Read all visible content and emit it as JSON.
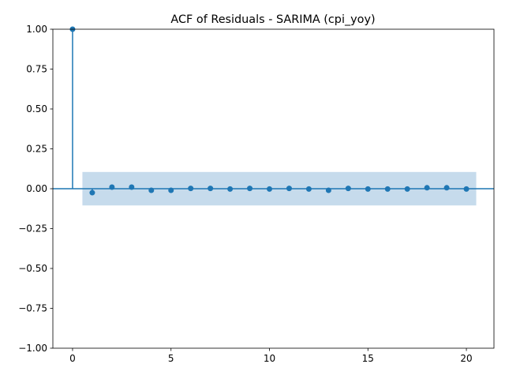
{
  "chart_data": {
    "type": "stem",
    "title": "ACF of Residuals - SARIMA (cpi_yoy)",
    "xlabel": "",
    "ylabel": "",
    "xlim": [
      -1,
      21.4
    ],
    "ylim": [
      -1.0,
      1.0
    ],
    "x_ticks": [
      0,
      5,
      10,
      15,
      20
    ],
    "y_ticks": [
      -1.0,
      -0.75,
      -0.5,
      -0.25,
      0.0,
      0.25,
      0.5,
      0.75,
      1.0
    ],
    "x_tick_labels": [
      "0",
      "5",
      "10",
      "15",
      "20"
    ],
    "y_tick_labels": [
      "−1.00",
      "−0.75",
      "−0.50",
      "−0.25",
      "0.00",
      "0.25",
      "0.50",
      "0.75",
      "1.00"
    ],
    "confidence_band": {
      "x_range": [
        0.5,
        20.5
      ],
      "lower": -0.105,
      "upper": 0.105,
      "color": "#c6dbec"
    },
    "grid": false,
    "series": [
      {
        "color": "#1f77b4",
        "x": [
          0,
          1,
          2,
          3,
          4,
          5,
          6,
          7,
          8,
          9,
          10,
          11,
          12,
          13,
          14,
          15,
          16,
          17,
          18,
          19,
          20
        ],
        "values": [
          1.0,
          -0.025,
          0.01,
          0.01,
          -0.01,
          -0.01,
          0.002,
          0.002,
          -0.002,
          0.002,
          -0.002,
          0.002,
          -0.002,
          -0.01,
          0.002,
          -0.002,
          -0.002,
          -0.002,
          0.006,
          0.006,
          -0.002
        ]
      }
    ]
  }
}
